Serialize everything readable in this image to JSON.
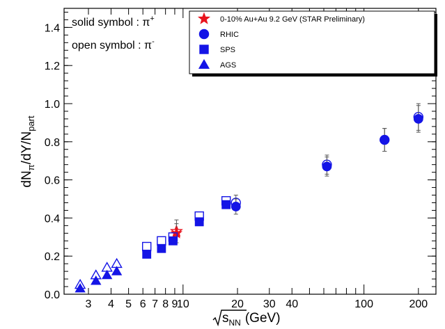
{
  "chart_data": {
    "type": "scatter",
    "title": "",
    "xlabel": "(GeV)",
    "xlabel_sqrt": "s",
    "xlabel_sub": "NN",
    "ylabel_parts": [
      "dN",
      "π",
      "/dY/N",
      "part"
    ],
    "xscale": "log",
    "xlim": [
      2.2,
      250
    ],
    "ylim": [
      0,
      1.5
    ],
    "xticks_labeled": [
      3,
      4,
      5,
      6,
      7,
      8,
      9,
      10,
      20,
      30,
      40,
      100,
      200
    ],
    "xticks_minor": [
      50,
      60,
      70,
      80,
      90
    ],
    "yticks": [
      0.0,
      0.2,
      0.4,
      0.6,
      0.8,
      1.0,
      1.2,
      1.4
    ],
    "ytick_labels": [
      "0.0",
      "0.2",
      "0.4",
      "0.6",
      "0.8",
      "1.0",
      "1.2",
      "1.4"
    ],
    "grid": false,
    "legend_position": "top-right",
    "annotations": [
      {
        "text": "solid symbol : π",
        "sup": "+"
      },
      {
        "text": "open symbol : π",
        "sup": "-"
      }
    ],
    "series": [
      {
        "name": "0-10% Au+Au 9.2 GeV (STAR Preliminary)",
        "marker": "star",
        "color": "#e8141e",
        "solid": [
          {
            "x": 9.2,
            "y": 0.32,
            "err": 0.05
          }
        ],
        "open": [
          {
            "x": 9.2,
            "y": 0.33,
            "err": 0.06
          }
        ]
      },
      {
        "name": "RHIC",
        "marker": "circle",
        "color": "#1414e6",
        "solid": [
          {
            "x": 19.6,
            "y": 0.46,
            "err": 0.04
          },
          {
            "x": 62.4,
            "y": 0.67,
            "err": 0.05
          },
          {
            "x": 130,
            "y": 0.81,
            "err": 0.06
          },
          {
            "x": 200,
            "y": 0.92,
            "err": 0.07
          }
        ],
        "open": [
          {
            "x": 19.6,
            "y": 0.48,
            "err": 0.04
          },
          {
            "x": 62.4,
            "y": 0.68,
            "err": 0.05
          },
          {
            "x": 130,
            "y": 0.81,
            "err": 0.06
          },
          {
            "x": 200,
            "y": 0.93,
            "err": 0.07
          }
        ]
      },
      {
        "name": "SPS",
        "marker": "square",
        "color": "#1414e6",
        "solid": [
          {
            "x": 6.3,
            "y": 0.21
          },
          {
            "x": 7.6,
            "y": 0.24
          },
          {
            "x": 8.8,
            "y": 0.28
          },
          {
            "x": 12.3,
            "y": 0.38
          },
          {
            "x": 17.3,
            "y": 0.47
          }
        ],
        "open": [
          {
            "x": 6.3,
            "y": 0.25
          },
          {
            "x": 7.6,
            "y": 0.28
          },
          {
            "x": 8.8,
            "y": 0.3
          },
          {
            "x": 12.3,
            "y": 0.41
          },
          {
            "x": 17.3,
            "y": 0.49
          }
        ]
      },
      {
        "name": "AGS",
        "marker": "triangle",
        "color": "#1414e6",
        "solid": [
          {
            "x": 2.7,
            "y": 0.03
          },
          {
            "x": 3.3,
            "y": 0.07
          },
          {
            "x": 3.8,
            "y": 0.1
          },
          {
            "x": 4.3,
            "y": 0.12
          }
        ],
        "open": [
          {
            "x": 2.7,
            "y": 0.05
          },
          {
            "x": 3.3,
            "y": 0.1
          },
          {
            "x": 3.8,
            "y": 0.14
          },
          {
            "x": 4.3,
            "y": 0.16
          }
        ]
      }
    ]
  }
}
